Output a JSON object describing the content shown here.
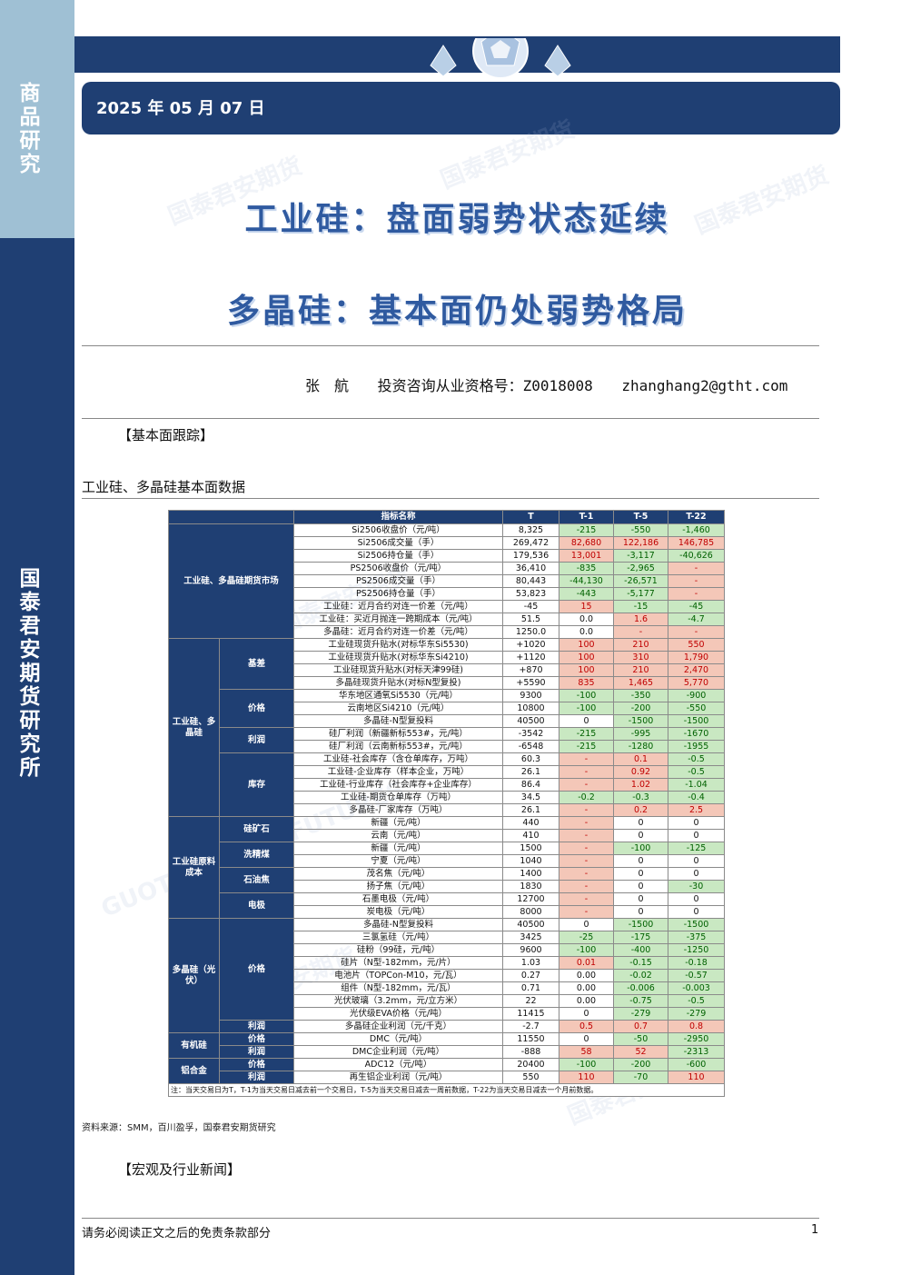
{
  "sidebar": {
    "top_label": "商品研究",
    "bottom_label": "国泰君安期货研究所"
  },
  "header": {
    "date": "2025 年 05 月 07 日"
  },
  "titles": {
    "line1": "工业硅：盘面弱势状态延续",
    "line2": "多晶硅：基本面仍处弱势格局"
  },
  "author": {
    "name": "张　航",
    "license": "投资咨询从业资格号：Z0018008",
    "email": "zhanghang2@gtht.com"
  },
  "sections": {
    "fundamentals": "【基本面跟踪】",
    "news": "【宏观及行业新闻】"
  },
  "table_caption": "工业硅、多晶硅基本面数据",
  "table": {
    "headers": [
      "指标名称",
      "T",
      "T-1",
      "T-5",
      "T-22"
    ],
    "note": "注：当天交易日为T，T-1为当天交易日减去前一个交易日，T-5为当天交易日减去一周前数据，T-22为当天交易日减去一个月前数据。",
    "groups": [
      {
        "name": "工业硅、多晶硅期货市场",
        "rows": [
          {
            "item": "Si2506收盘价（元/吨）",
            "t": "8,325",
            "t1": "-215",
            "t5": "-550",
            "t22": "-1,460"
          },
          {
            "item": "Si2506成交量（手）",
            "t": "269,472",
            "t1": "82,680",
            "t5": "122,186",
            "t22": "146,785"
          },
          {
            "item": "Si2506持仓量（手）",
            "t": "179,536",
            "t1": "13,001",
            "t5": "-3,117",
            "t22": "-40,626"
          },
          {
            "item": "PS2506收盘价（元/吨）",
            "t": "36,410",
            "t1": "-835",
            "t5": "-2,965",
            "t22": "-"
          },
          {
            "item": "PS2506成交量（手）",
            "t": "80,443",
            "t1": "-44,130",
            "t5": "-26,571",
            "t22": "-"
          },
          {
            "item": "PS2506持仓量（手）",
            "t": "53,823",
            "t1": "-443",
            "t5": "-5,177",
            "t22": "-"
          },
          {
            "item": "工业硅：近月合约对连一价差（元/吨）",
            "t": "-45",
            "t1": "15",
            "t5": "-15",
            "t22": "-45"
          },
          {
            "item": "工业硅：买近月抛连一跨期成本（元/吨）",
            "t": "51.5",
            "t1": "0.0",
            "t5": "1.6",
            "t22": "-4.7"
          },
          {
            "item": "多晶硅：近月合约对连一价差（元/吨）",
            "t": "1250.0",
            "t1": "0.0",
            "t5": "-",
            "t22": "-"
          }
        ]
      },
      {
        "name": "工业硅、多晶硅",
        "subgroups": [
          {
            "name": "基差",
            "rows": [
              {
                "item": "工业硅现货升贴水(对标华东Si5530)",
                "t": "+1020",
                "t1": "100",
                "t5": "210",
                "t22": "550"
              },
              {
                "item": "工业硅现货升贴水(对标华东Si4210)",
                "t": "+1120",
                "t1": "100",
                "t5": "310",
                "t22": "1,790"
              },
              {
                "item": "工业硅现货升贴水(对标天津99硅)",
                "t": "+870",
                "t1": "100",
                "t5": "210",
                "t22": "2,470"
              },
              {
                "item": "多晶硅现货升贴水(对标N型复投)",
                "t": "+5590",
                "t1": "835",
                "t5": "1,465",
                "t22": "5,770"
              }
            ]
          },
          {
            "name": "价格",
            "rows": [
              {
                "item": "华东地区通氧Si5530（元/吨）",
                "t": "9300",
                "t1": "-100",
                "t5": "-350",
                "t22": "-900"
              },
              {
                "item": "云南地区Si4210（元/吨）",
                "t": "10800",
                "t1": "-100",
                "t5": "-200",
                "t22": "-550"
              },
              {
                "item": "多晶硅-N型复投料",
                "t": "40500",
                "t1": "0",
                "t5": "-1500",
                "t22": "-1500"
              }
            ]
          },
          {
            "name": "利润",
            "rows": [
              {
                "item": "硅厂利润（新疆新标553#，元/吨）",
                "t": "-3542",
                "t1": "-215",
                "t5": "-995",
                "t22": "-1670"
              },
              {
                "item": "硅厂利润（云南新标553#，元/吨）",
                "t": "-6548",
                "t1": "-215",
                "t5": "-1280",
                "t22": "-1955"
              }
            ]
          },
          {
            "name": "库存",
            "rows": [
              {
                "item": "工业硅-社会库存（含仓单库存，万吨）",
                "t": "60.3",
                "t1": "-",
                "t5": "0.1",
                "t22": "-0.5"
              },
              {
                "item": "工业硅-企业库存（样本企业，万吨）",
                "t": "26.1",
                "t1": "-",
                "t5": "0.92",
                "t22": "-0.5"
              },
              {
                "item": "工业硅-行业库存（社会库存+企业库存）",
                "t": "86.4",
                "t1": "-",
                "t5": "1.02",
                "t22": "-1.04"
              },
              {
                "item": "工业硅-期货仓单库存（万吨）",
                "t": "34.5",
                "t1": "-0.2",
                "t5": "-0.3",
                "t22": "-0.4"
              },
              {
                "item": "多晶硅-厂家库存（万吨）",
                "t": "26.1",
                "t1": "-",
                "t5": "0.2",
                "t22": "2.5"
              }
            ]
          }
        ]
      },
      {
        "name": "工业硅原料成本",
        "subgroups": [
          {
            "name": "硅矿石",
            "rows": [
              {
                "item": "新疆（元/吨）",
                "t": "440",
                "t1": "-",
                "t5": "0",
                "t22": "0"
              },
              {
                "item": "云南（元/吨）",
                "t": "410",
                "t1": "-",
                "t5": "0",
                "t22": "0"
              }
            ]
          },
          {
            "name": "洗精煤",
            "rows": [
              {
                "item": "新疆（元/吨）",
                "t": "1500",
                "t1": "-",
                "t5": "-100",
                "t22": "-125"
              },
              {
                "item": "宁夏（元/吨）",
                "t": "1040",
                "t1": "-",
                "t5": "0",
                "t22": "0"
              }
            ]
          },
          {
            "name": "石油焦",
            "rows": [
              {
                "item": "茂名焦（元/吨）",
                "t": "1400",
                "t1": "-",
                "t5": "0",
                "t22": "0"
              },
              {
                "item": "扬子焦（元/吨）",
                "t": "1830",
                "t1": "-",
                "t5": "0",
                "t22": "-30"
              }
            ]
          },
          {
            "name": "电极",
            "rows": [
              {
                "item": "石墨电极（元/吨）",
                "t": "12700",
                "t1": "-",
                "t5": "0",
                "t22": "0"
              },
              {
                "item": "炭电极（元/吨）",
                "t": "8000",
                "t1": "-",
                "t5": "0",
                "t22": "0"
              }
            ]
          }
        ]
      },
      {
        "name": "多晶硅（光伏）",
        "subgroups": [
          {
            "name": "价格",
            "rows": [
              {
                "item": "多晶硅-N型复投料",
                "t": "40500",
                "t1": "0",
                "t5": "-1500",
                "t22": "-1500"
              },
              {
                "item": "三氯氢硅（元/吨）",
                "t": "3425",
                "t1": "-25",
                "t5": "-175",
                "t22": "-375"
              },
              {
                "item": "硅粉（99硅，元/吨）",
                "t": "9600",
                "t1": "-100",
                "t5": "-400",
                "t22": "-1250"
              },
              {
                "item": "硅片（N型-182mm，元/片）",
                "t": "1.03",
                "t1": "0.01",
                "t5": "-0.15",
                "t22": "-0.18"
              },
              {
                "item": "电池片（TOPCon-M10，元/瓦）",
                "t": "0.27",
                "t1": "0.00",
                "t5": "-0.02",
                "t22": "-0.57"
              },
              {
                "item": "组件（N型-182mm，元/瓦）",
                "t": "0.71",
                "t1": "0.00",
                "t5": "-0.006",
                "t22": "-0.003"
              },
              {
                "item": "光伏玻璃（3.2mm，元/立方米）",
                "t": "22",
                "t1": "0.00",
                "t5": "-0.75",
                "t22": "-0.5"
              },
              {
                "item": "光伏级EVA价格（元/吨）",
                "t": "11415",
                "t1": "0",
                "t5": "-279",
                "t22": "-279"
              }
            ]
          },
          {
            "name": "利润",
            "rows": [
              {
                "item": "多晶硅企业利润（元/千克）",
                "t": "-2.7",
                "t1": "0.5",
                "t5": "0.7",
                "t22": "0.8"
              }
            ]
          }
        ]
      },
      {
        "name": "有机硅",
        "subgroups": [
          {
            "name": "价格",
            "rows": [
              {
                "item": "DMC（元/吨）",
                "t": "11550",
                "t1": "0",
                "t5": "-50",
                "t22": "-2950"
              }
            ]
          },
          {
            "name": "利润",
            "rows": [
              {
                "item": "DMC企业利润（元/吨）",
                "t": "-888",
                "t1": "58",
                "t5": "52",
                "t22": "-2313"
              }
            ]
          }
        ]
      },
      {
        "name": "铝合金",
        "subgroups": [
          {
            "name": "价格",
            "rows": [
              {
                "item": "ADC12（元/吨）",
                "t": "20400",
                "t1": "-100",
                "t5": "-200",
                "t22": "-600"
              }
            ]
          },
          {
            "name": "利润",
            "rows": [
              {
                "item": "再生铝企业利润（元/吨）",
                "t": "550",
                "t1": "110",
                "t5": "-70",
                "t22": "110"
              }
            ]
          }
        ]
      }
    ]
  },
  "source": "资料来源：SMM，百川盈孚，国泰君安期货研究",
  "footer": {
    "disclaimer": "请务必阅读正文之后的免责条款部分",
    "page": "1"
  },
  "watermark": {
    "cn": "国泰君安期货",
    "en": "GUOTAI JUNAN FUTURES"
  },
  "colors": {
    "navy": "#1f3f73",
    "light_blue": "#9fc0d4",
    "pos_bg": "#f4c7b8",
    "neg_bg": "#c9e8c2"
  }
}
